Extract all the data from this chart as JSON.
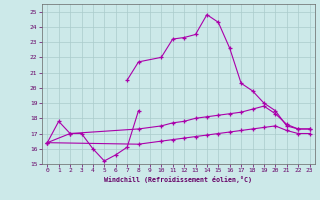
{
  "xlabel": "Windchill (Refroidissement éolien,°C)",
  "xlim": [
    -0.5,
    23.5
  ],
  "ylim": [
    15,
    25.5
  ],
  "yticks": [
    15,
    16,
    17,
    18,
    19,
    20,
    21,
    22,
    23,
    24,
    25
  ],
  "xticks": [
    0,
    1,
    2,
    3,
    4,
    5,
    6,
    7,
    8,
    9,
    10,
    11,
    12,
    13,
    14,
    15,
    16,
    17,
    18,
    19,
    20,
    21,
    22,
    23
  ],
  "bg_color": "#cce9e9",
  "grid_color": "#aacccc",
  "line_color": "#aa00aa",
  "line1_x": [
    0,
    1,
    2,
    3,
    4,
    5,
    6,
    7,
    8
  ],
  "line1_y": [
    16.4,
    17.8,
    17.0,
    17.0,
    16.0,
    15.2,
    15.6,
    16.1,
    18.5
  ],
  "line2_x": [
    7,
    8,
    10,
    11,
    12,
    13,
    14,
    15,
    16,
    17,
    18,
    19,
    20,
    21,
    22,
    23
  ],
  "line2_y": [
    20.5,
    21.7,
    22.0,
    23.2,
    23.3,
    23.5,
    24.8,
    24.3,
    22.6,
    20.3,
    19.8,
    19.0,
    18.5,
    17.5,
    17.3,
    17.3
  ],
  "line3_x": [
    0,
    2,
    8,
    10,
    11,
    12,
    13,
    14,
    15,
    16,
    17,
    18,
    19,
    20,
    21,
    22,
    23
  ],
  "line3_y": [
    16.4,
    17.0,
    17.3,
    17.5,
    17.7,
    17.8,
    18.0,
    18.1,
    18.2,
    18.3,
    18.4,
    18.6,
    18.8,
    18.3,
    17.6,
    17.3,
    17.3
  ],
  "line4_x": [
    0,
    8,
    10,
    11,
    12,
    13,
    14,
    15,
    16,
    17,
    18,
    19,
    20,
    21,
    22,
    23
  ],
  "line4_y": [
    16.4,
    16.3,
    16.5,
    16.6,
    16.7,
    16.8,
    16.9,
    17.0,
    17.1,
    17.2,
    17.3,
    17.4,
    17.5,
    17.2,
    17.0,
    17.0
  ]
}
